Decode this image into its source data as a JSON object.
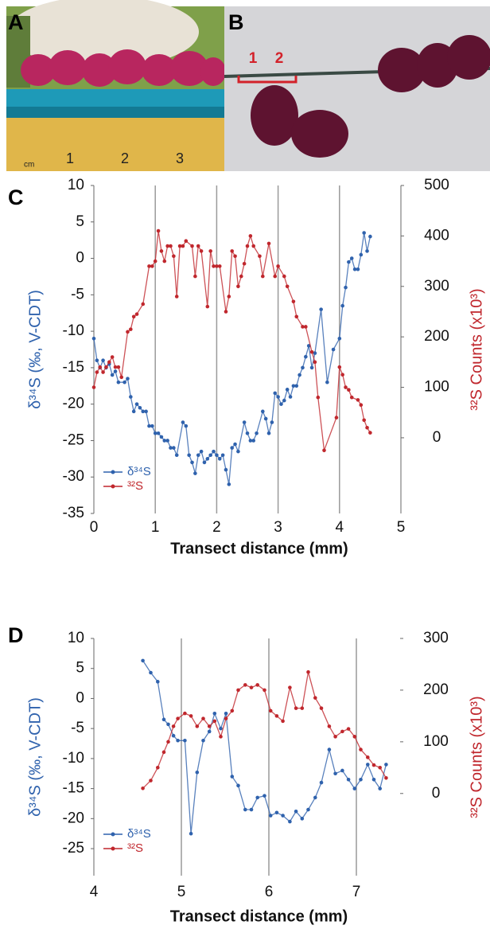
{
  "photo_a": {
    "panel": "A",
    "ruler_unit": "cm",
    "ruler_numbers": [
      "1",
      "2",
      "3"
    ]
  },
  "photo_b": {
    "panel": "B",
    "markers": [
      "1",
      "2"
    ]
  },
  "chart_data": [
    {
      "type": "line",
      "panel": "C",
      "xlabel": "Transect distance (mm)",
      "ylabel": "δ³⁴S (‰, V-CDT)",
      "y2label": "³²S Counts (x10³)",
      "xlim": [
        0,
        5
      ],
      "xticks": [
        0,
        1,
        2,
        3,
        4,
        5
      ],
      "ylim": [
        -35,
        10
      ],
      "yticks": [
        -35,
        -30,
        -25,
        -20,
        -15,
        -10,
        -5,
        0,
        5,
        10
      ],
      "y2lim": [
        -150,
        500
      ],
      "y2ticks": [
        0,
        100,
        200,
        300,
        400,
        500
      ],
      "grid": "x",
      "legend": "lower left",
      "series": [
        {
          "name": "δ³⁴S",
          "color": "#2f62ad",
          "x": [
            0,
            0.05,
            0.1,
            0.15,
            0.2,
            0.25,
            0.3,
            0.35,
            0.4,
            0.5,
            0.55,
            0.6,
            0.65,
            0.7,
            0.75,
            0.8,
            0.85,
            0.9,
            0.95,
            1.0,
            1.05,
            1.1,
            1.15,
            1.2,
            1.25,
            1.3,
            1.35,
            1.45,
            1.5,
            1.55,
            1.6,
            1.65,
            1.7,
            1.75,
            1.8,
            1.85,
            1.9,
            1.95,
            2.0,
            2.05,
            2.1,
            2.15,
            2.2,
            2.25,
            2.3,
            2.35,
            2.45,
            2.5,
            2.55,
            2.6,
            2.65,
            2.75,
            2.8,
            2.85,
            2.9,
            2.95,
            3.0,
            3.05,
            3.1,
            3.15,
            3.2,
            3.25,
            3.3,
            3.35,
            3.4,
            3.45,
            3.5,
            3.55,
            3.6,
            3.7,
            3.8,
            3.9,
            4.0,
            4.05,
            4.1,
            4.15,
            4.2,
            4.25,
            4.3,
            4.35,
            4.4,
            4.45,
            4.5
          ],
          "values": [
            -11,
            -14,
            -15,
            -14,
            -15,
            -14.5,
            -16,
            -15.5,
            -17,
            -17,
            -16.5,
            -19,
            -21,
            -20,
            -20.5,
            -21,
            -21,
            -23,
            -23,
            -24,
            -24,
            -24.5,
            -25,
            -25,
            -26,
            -26,
            -27,
            -22.5,
            -23,
            -27,
            -28,
            -29.5,
            -27,
            -26.5,
            -28,
            -27.5,
            -27,
            -26.5,
            -27,
            -27.5,
            -27,
            -29,
            -31,
            -26,
            -25.5,
            -26.5,
            -22.5,
            -24,
            -25,
            -25,
            -24,
            -21,
            -22,
            -24,
            -22.5,
            -18.5,
            -19,
            -20,
            -19.5,
            -18,
            -19,
            -17.5,
            -17.5,
            -16,
            -15,
            -13.5,
            -12,
            -15,
            -13,
            -7,
            -17,
            -12.5,
            -11,
            -6.5,
            -4,
            -0.5,
            0,
            -1.5,
            -1.5,
            0.5,
            3.5,
            1,
            3
          ]
        },
        {
          "name": "³²S",
          "color": "#c0272d",
          "axis": "y2",
          "x": [
            0,
            0.05,
            0.1,
            0.15,
            0.2,
            0.25,
            0.3,
            0.35,
            0.4,
            0.45,
            0.55,
            0.6,
            0.65,
            0.7,
            0.8,
            0.9,
            0.95,
            1.0,
            1.05,
            1.1,
            1.15,
            1.2,
            1.25,
            1.3,
            1.35,
            1.4,
            1.45,
            1.5,
            1.6,
            1.65,
            1.7,
            1.75,
            1.85,
            1.9,
            1.95,
            2.0,
            2.05,
            2.15,
            2.2,
            2.25,
            2.3,
            2.35,
            2.4,
            2.45,
            2.5,
            2.55,
            2.6,
            2.7,
            2.75,
            2.85,
            2.95,
            3.0,
            3.1,
            3.15,
            3.25,
            3.3,
            3.4,
            3.45,
            3.55,
            3.6,
            3.65,
            3.75,
            3.95,
            4.0,
            4.05,
            4.1,
            4.15,
            4.2,
            4.3,
            4.35,
            4.4,
            4.45,
            4.5
          ],
          "values": [
            100,
            130,
            140,
            130,
            140,
            150,
            160,
            140,
            140,
            120,
            210,
            215,
            240,
            245,
            265,
            340,
            340,
            350,
            410,
            370,
            350,
            380,
            380,
            360,
            280,
            380,
            380,
            390,
            380,
            320,
            380,
            370,
            260,
            370,
            340,
            340,
            340,
            250,
            280,
            370,
            360,
            300,
            320,
            345,
            380,
            400,
            380,
            360,
            320,
            385,
            320,
            340,
            320,
            300,
            270,
            240,
            220,
            220,
            170,
            150,
            80,
            -25,
            40,
            140,
            125,
            100,
            95,
            80,
            75,
            65,
            35,
            20,
            10
          ]
        }
      ]
    },
    {
      "type": "line",
      "panel": "D",
      "xlabel": "Transect distance (mm)",
      "ylabel": "δ³⁴S (‰, V-CDT)",
      "y2label": "³²S Counts (x10³)",
      "xlim": [
        4,
        7.5
      ],
      "xticks": [
        4,
        5,
        6,
        7
      ],
      "ylim": [
        -29.5,
        10
      ],
      "yticks": [
        -25,
        -20,
        -15,
        -10,
        -5,
        0,
        5,
        10
      ],
      "y2lim": [
        -159,
        300
      ],
      "y2ticks": [
        0,
        100,
        200,
        300
      ],
      "grid": "x",
      "legend": "lower left",
      "series": [
        {
          "name": "δ³⁴S",
          "color": "#2f62ad",
          "x": [
            4.56,
            4.65,
            4.73,
            4.8,
            4.85,
            4.91,
            4.96,
            5.04,
            5.11,
            5.18,
            5.25,
            5.32,
            5.38,
            5.45,
            5.51,
            5.58,
            5.65,
            5.73,
            5.8,
            5.87,
            5.95,
            6.02,
            6.09,
            6.16,
            6.24,
            6.31,
            6.38,
            6.45,
            6.53,
            6.6,
            6.69,
            6.76,
            6.84,
            6.91,
            6.98,
            7.05,
            7.13,
            7.2,
            7.27,
            7.34
          ],
          "values": [
            6.3,
            4.3,
            2.8,
            -3.5,
            -4.3,
            -6.2,
            -7,
            -7,
            -22.5,
            -12.3,
            -7,
            -5.5,
            -2.5,
            -5,
            -2.5,
            -13,
            -14.5,
            -18.5,
            -18.5,
            -16.5,
            -16.2,
            -19.5,
            -19,
            -19.5,
            -20.5,
            -18.8,
            -20,
            -18.5,
            -16.5,
            -14,
            -8.5,
            -12.5,
            -12,
            -13.5,
            -15,
            -13.5,
            -11,
            -13.5,
            -15,
            -11
          ]
        },
        {
          "name": "³²S",
          "color": "#c0272d",
          "axis": "y2",
          "x": [
            4.56,
            4.65,
            4.73,
            4.8,
            4.85,
            4.91,
            4.96,
            5.04,
            5.11,
            5.18,
            5.25,
            5.32,
            5.38,
            5.45,
            5.51,
            5.58,
            5.65,
            5.73,
            5.8,
            5.87,
            5.95,
            6.02,
            6.09,
            6.16,
            6.24,
            6.31,
            6.38,
            6.45,
            6.53,
            6.6,
            6.69,
            6.76,
            6.84,
            6.91,
            6.98,
            7.05,
            7.13,
            7.2,
            7.27,
            7.34
          ],
          "values": [
            10,
            25,
            50,
            80,
            100,
            130,
            145,
            155,
            150,
            130,
            145,
            130,
            140,
            110,
            145,
            160,
            200,
            210,
            205,
            210,
            200,
            160,
            150,
            140,
            205,
            165,
            165,
            235,
            185,
            165,
            130,
            110,
            120,
            125,
            110,
            85,
            70,
            55,
            50,
            30
          ]
        }
      ]
    }
  ]
}
